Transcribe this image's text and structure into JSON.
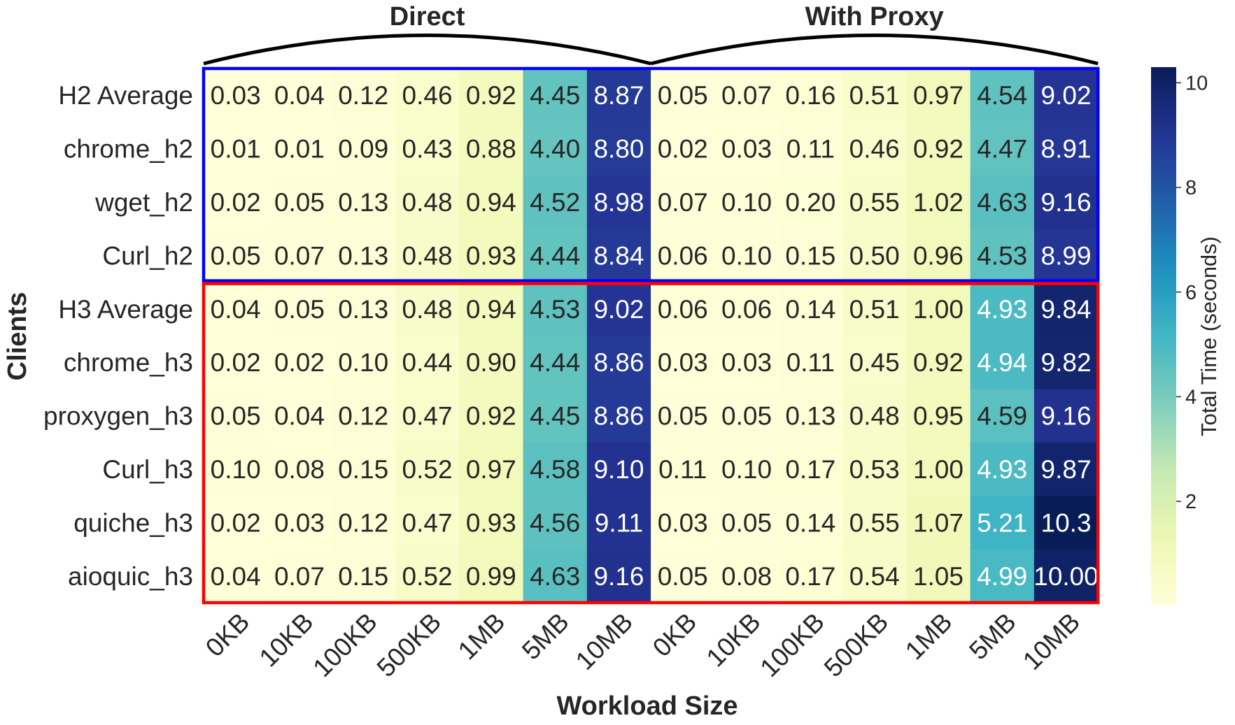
{
  "chart_data": {
    "type": "heatmap",
    "title": "",
    "xlabel": "Workload Size",
    "ylabel": "Clients",
    "groups": [
      "Direct",
      "With Proxy"
    ],
    "columns": [
      "0KB",
      "10KB",
      "100KB",
      "500KB",
      "1MB",
      "5MB",
      "10MB",
      "0KB",
      "10KB",
      "100KB",
      "500KB",
      "1MB",
      "5MB",
      "10MB"
    ],
    "rows": [
      "H2 Average",
      "chrome_h2",
      "wget_h2",
      "Curl_h2",
      "H3 Average",
      "chrome_h3",
      "proxygen_h3",
      "Curl_h3",
      "quiche_h3",
      "aioquic_h3"
    ],
    "values": [
      [
        0.03,
        0.04,
        0.12,
        0.46,
        0.92,
        4.45,
        8.87,
        0.05,
        0.07,
        0.16,
        0.51,
        0.97,
        4.54,
        9.02
      ],
      [
        0.01,
        0.01,
        0.09,
        0.43,
        0.88,
        4.4,
        8.8,
        0.02,
        0.03,
        0.11,
        0.46,
        0.92,
        4.47,
        8.91
      ],
      [
        0.02,
        0.05,
        0.13,
        0.48,
        0.94,
        4.52,
        8.98,
        0.07,
        0.1,
        0.2,
        0.55,
        1.02,
        4.63,
        9.16
      ],
      [
        0.05,
        0.07,
        0.13,
        0.48,
        0.93,
        4.44,
        8.84,
        0.06,
        0.1,
        0.15,
        0.5,
        0.96,
        4.53,
        8.99
      ],
      [
        0.04,
        0.05,
        0.13,
        0.48,
        0.94,
        4.53,
        9.02,
        0.06,
        0.06,
        0.14,
        0.51,
        1.0,
        4.93,
        9.84
      ],
      [
        0.02,
        0.02,
        0.1,
        0.44,
        0.9,
        4.44,
        8.86,
        0.03,
        0.03,
        0.11,
        0.45,
        0.92,
        4.94,
        9.82
      ],
      [
        0.05,
        0.04,
        0.12,
        0.47,
        0.92,
        4.45,
        8.86,
        0.05,
        0.05,
        0.13,
        0.48,
        0.95,
        4.59,
        9.16
      ],
      [
        0.1,
        0.08,
        0.15,
        0.52,
        0.97,
        4.58,
        9.1,
        0.11,
        0.1,
        0.17,
        0.53,
        1.0,
        4.93,
        9.87
      ],
      [
        0.02,
        0.03,
        0.12,
        0.47,
        0.93,
        4.56,
        9.11,
        0.03,
        0.05,
        0.14,
        0.55,
        1.07,
        5.21,
        10.3
      ],
      [
        0.04,
        0.07,
        0.15,
        0.52,
        0.99,
        4.63,
        9.16,
        0.05,
        0.08,
        0.17,
        0.54,
        1.05,
        4.99,
        10.0
      ]
    ],
    "cell_labels": [
      [
        "0.03",
        "0.04",
        "0.12",
        "0.46",
        "0.92",
        "4.45",
        "8.87",
        "0.05",
        "0.07",
        "0.16",
        "0.51",
        "0.97",
        "4.54",
        "9.02"
      ],
      [
        "0.01",
        "0.01",
        "0.09",
        "0.43",
        "0.88",
        "4.40",
        "8.80",
        "0.02",
        "0.03",
        "0.11",
        "0.46",
        "0.92",
        "4.47",
        "8.91"
      ],
      [
        "0.02",
        "0.05",
        "0.13",
        "0.48",
        "0.94",
        "4.52",
        "8.98",
        "0.07",
        "0.10",
        "0.20",
        "0.55",
        "1.02",
        "4.63",
        "9.16"
      ],
      [
        "0.05",
        "0.07",
        "0.13",
        "0.48",
        "0.93",
        "4.44",
        "8.84",
        "0.06",
        "0.10",
        "0.15",
        "0.50",
        "0.96",
        "4.53",
        "8.99"
      ],
      [
        "0.04",
        "0.05",
        "0.13",
        "0.48",
        "0.94",
        "4.53",
        "9.02",
        "0.06",
        "0.06",
        "0.14",
        "0.51",
        "1.00",
        "4.93",
        "9.84"
      ],
      [
        "0.02",
        "0.02",
        "0.10",
        "0.44",
        "0.90",
        "4.44",
        "8.86",
        "0.03",
        "0.03",
        "0.11",
        "0.45",
        "0.92",
        "4.94",
        "9.82"
      ],
      [
        "0.05",
        "0.04",
        "0.12",
        "0.47",
        "0.92",
        "4.45",
        "8.86",
        "0.05",
        "0.05",
        "0.13",
        "0.48",
        "0.95",
        "4.59",
        "9.16"
      ],
      [
        "0.10",
        "0.08",
        "0.15",
        "0.52",
        "0.97",
        "4.58",
        "9.10",
        "0.11",
        "0.10",
        "0.17",
        "0.53",
        "1.00",
        "4.93",
        "9.87"
      ],
      [
        "0.02",
        "0.03",
        "0.12",
        "0.47",
        "0.93",
        "4.56",
        "9.11",
        "0.03",
        "0.05",
        "0.14",
        "0.55",
        "1.07",
        "5.21",
        "10.3"
      ],
      [
        "0.04",
        "0.07",
        "0.15",
        "0.52",
        "0.99",
        "4.63",
        "9.16",
        "0.05",
        "0.08",
        "0.17",
        "0.54",
        "1.05",
        "4.99",
        "10.00"
      ]
    ],
    "highlight_boxes": [
      {
        "rows": [
          0,
          3
        ],
        "color": "#0000ff"
      },
      {
        "rows": [
          4,
          9
        ],
        "color": "#ff0000"
      }
    ],
    "colorbar": {
      "label": "Total Time (seconds)",
      "colormap": "YlGnBu",
      "vmin": 0.01,
      "vmax": 10.3,
      "ticks": [
        2,
        4,
        6,
        8,
        10
      ],
      "tick_labels": [
        "2",
        "4",
        "6",
        "8",
        "10"
      ]
    }
  }
}
